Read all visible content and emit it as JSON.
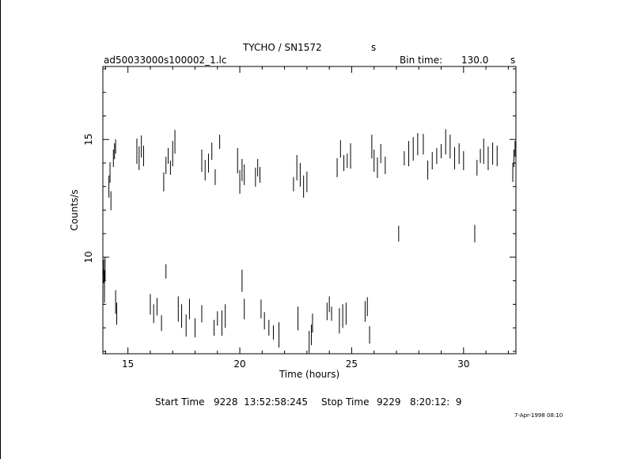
{
  "header": {
    "title": "TYCHO / SN1572",
    "title_unit": "s",
    "file": "ad50033000s100002_1.lc",
    "bin_label": "Bin time:",
    "bin_value": "130.0",
    "bin_unit": "s"
  },
  "footer": {
    "start_label": "Start Time",
    "start_value": "9228  13:52:58:245",
    "stop_label": "Stop Time",
    "stop_value": "9229   8:20:12:  9",
    "stamp": "7-Apr-1998 08:10"
  },
  "chart_data": {
    "type": "scatter",
    "xlabel": "Time (hours)",
    "ylabel": "Counts/s",
    "xlim": [
      13.88,
      32.34
    ],
    "ylim": [
      5.9,
      18.1
    ],
    "xticks": [
      15,
      20,
      25,
      30
    ],
    "yticks": [
      10,
      15
    ],
    "x_minor_step": 1,
    "y_minor_step": 1,
    "grid": false,
    "error_bars": true,
    "series": [
      {
        "x": [
          13.92,
          13.95,
          13.98,
          14.15,
          14.2,
          14.24,
          14.35,
          14.4,
          14.45,
          15.4,
          15.5,
          15.6,
          15.7,
          16.6,
          16.7,
          16.8,
          16.9,
          17.0,
          17.1,
          18.3,
          18.45,
          18.6,
          18.75,
          18.9,
          19.1,
          19.9,
          20.0,
          20.1,
          20.2,
          20.7,
          20.8,
          20.9,
          22.4,
          22.55,
          22.7,
          22.85,
          23.0,
          24.35,
          24.5,
          24.65,
          24.8,
          24.95,
          25.9,
          26.0,
          26.15,
          26.3,
          26.5,
          27.1,
          27.35,
          27.55,
          27.75,
          27.95,
          28.2,
          28.4,
          28.6,
          28.8,
          29.0,
          29.2,
          29.4,
          29.6,
          29.8,
          30.0,
          30.5,
          30.6,
          30.75,
          30.9,
          31.1,
          31.3,
          31.5,
          32.2,
          32.25,
          32.3,
          13.92,
          13.95,
          14.45,
          14.5,
          16.0,
          16.15,
          16.3,
          16.5,
          16.7,
          17.25,
          17.4,
          17.6,
          17.75,
          18.0,
          18.3,
          18.85,
          19.0,
          19.2,
          19.35,
          20.1,
          20.2,
          20.95,
          21.1,
          21.3,
          21.5,
          21.75,
          22.6,
          23.1,
          23.2,
          23.25,
          23.9,
          24.0,
          24.1,
          24.45,
          24.6,
          24.75,
          25.6,
          25.7,
          25.8
        ],
        "y": [
          9.2,
          8.6,
          9.5,
          13.0,
          13.6,
          12.4,
          14.2,
          14.5,
          14.7,
          14.5,
          14.2,
          14.7,
          14.3,
          13.2,
          13.9,
          14.3,
          13.8,
          14.4,
          14.9,
          14.1,
          13.7,
          14.0,
          14.5,
          13.4,
          14.9,
          14.1,
          13.2,
          13.7,
          13.5,
          13.4,
          13.8,
          13.5,
          13.1,
          13.8,
          13.5,
          13.0,
          13.2,
          13.8,
          14.6,
          14.0,
          14.1,
          14.3,
          14.7,
          14.1,
          13.8,
          14.4,
          13.9,
          11.0,
          14.2,
          14.4,
          14.6,
          14.8,
          14.8,
          13.7,
          14.1,
          14.3,
          14.5,
          14.9,
          14.7,
          14.2,
          14.4,
          14.1,
          11.0,
          13.8,
          14.3,
          14.5,
          14.2,
          14.4,
          14.3,
          13.6,
          14.2,
          14.6,
          9.6,
          8.9,
          8.1,
          7.6,
          8.0,
          7.6,
          7.9,
          7.2,
          9.4,
          7.8,
          7.5,
          7.1,
          7.8,
          7.0,
          7.6,
          7.0,
          7.4,
          7.2,
          7.5,
          9.0,
          7.8,
          7.8,
          7.3,
          7.0,
          6.8,
          6.7,
          7.4,
          6.4,
          6.7,
          7.2,
          7.7,
          8.0,
          7.6,
          7.3,
          7.5,
          7.6,
          7.7,
          7.9,
          6.7
        ]
      }
    ]
  }
}
